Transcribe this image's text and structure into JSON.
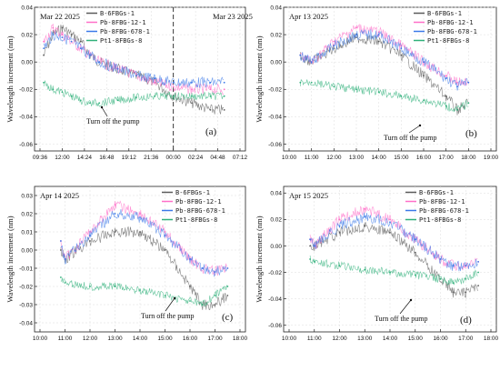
{
  "colors": {
    "B-6FBGs-1": "#5a5a5a",
    "Pb-8FBG-12-1": "#ff6fc8",
    "Pb-8FBG-678-1": "#3a78e8",
    "Pt1-8FBGs-8": "#2fb07a"
  },
  "legend_entries": [
    "B-6FBGs-1",
    "Pb-8FBG-12-1",
    "Pb-8FBG-678-1",
    "Pt1-8FBGs-8"
  ],
  "y_axis_label": "Wavelength  increment (nm)",
  "chart_data": [
    {
      "panel": "(a)",
      "type": "line",
      "title": "Mar 22 2025",
      "secondary_title": "Mar 23 2025",
      "ylabel": "Wavelength  increment (nm)",
      "xticks": [
        "09:36",
        "12:00",
        "14:24",
        "16:48",
        "19:12",
        "21:36",
        "00:00",
        "02:24",
        "04:48",
        "07:12"
      ],
      "yticks": [
        "0.04",
        "0.02",
        "0.00",
        "-0.02",
        "-0.04",
        "-0.06"
      ],
      "ylim": [
        -0.065,
        0.04
      ],
      "annotation": "Turn off the pump",
      "day_boundary_x": "00:00",
      "series": [
        {
          "name": "B-6FBGs-1",
          "x": [
            "10:00",
            "11:00",
            "12:00",
            "13:00",
            "14:00",
            "15:00",
            "16:00",
            "18:00",
            "20:00",
            "22:00",
            "00:00",
            "02:00",
            "04:00",
            "05:30"
          ],
          "values": [
            0.005,
            0.02,
            0.025,
            0.02,
            0.015,
            0.005,
            0.0,
            -0.005,
            -0.01,
            -0.015,
            -0.025,
            -0.03,
            -0.035,
            -0.035
          ]
        },
        {
          "name": "Pb-8FBG-12-1",
          "x": [
            "10:00",
            "11:00",
            "12:00",
            "13:00",
            "14:00",
            "15:00",
            "16:00",
            "18:00",
            "20:00",
            "22:00",
            "00:00",
            "02:00",
            "04:00",
            "05:30"
          ],
          "values": [
            0.015,
            0.025,
            0.02,
            0.015,
            0.01,
            0.005,
            0.0,
            -0.005,
            -0.01,
            -0.015,
            -0.018,
            -0.02,
            -0.02,
            -0.02
          ]
        },
        {
          "name": "Pb-8FBG-678-1",
          "x": [
            "10:00",
            "11:00",
            "12:00",
            "13:00",
            "14:00",
            "15:00",
            "16:00",
            "18:00",
            "20:00",
            "22:00",
            "00:00",
            "02:00",
            "04:00",
            "05:30"
          ],
          "values": [
            0.01,
            0.02,
            0.018,
            0.015,
            0.01,
            0.005,
            0.0,
            -0.005,
            -0.01,
            -0.012,
            -0.015,
            -0.015,
            -0.015,
            -0.015
          ]
        },
        {
          "name": "Pt1-8FBGs-8",
          "x": [
            "10:00",
            "11:00",
            "12:00",
            "13:00",
            "14:00",
            "15:00",
            "16:00",
            "18:00",
            "20:00",
            "22:00",
            "00:00",
            "02:00",
            "04:00",
            "05:30"
          ],
          "values": [
            -0.015,
            -0.02,
            -0.022,
            -0.025,
            -0.028,
            -0.03,
            -0.03,
            -0.028,
            -0.026,
            -0.025,
            -0.025,
            -0.025,
            -0.025,
            -0.025
          ]
        }
      ]
    },
    {
      "panel": "(b)",
      "type": "line",
      "title": "Apr 13 2025",
      "ylabel": "Wavelength  increment (nm)",
      "xticks": [
        "10:00",
        "11:00",
        "12:00",
        "13:00",
        "14:00",
        "15:00",
        "16:00",
        "17:00",
        "18:00",
        "19:00"
      ],
      "yticks": [
        "0.04",
        "0.02",
        "0.00",
        "-0.02",
        "-0.04",
        "-0.06"
      ],
      "ylim": [
        -0.065,
        0.04
      ],
      "annotation": "Turn off the pump",
      "series": [
        {
          "name": "B-6FBGs-1",
          "x": [
            "10:30",
            "11:00",
            "12:00",
            "13:00",
            "14:00",
            "15:00",
            "16:00",
            "17:00",
            "17:30",
            "18:00"
          ],
          "values": [
            0.005,
            0.0,
            0.01,
            0.018,
            0.015,
            0.005,
            -0.01,
            -0.025,
            -0.035,
            -0.03
          ]
        },
        {
          "name": "Pb-8FBG-12-1",
          "x": [
            "10:30",
            "11:00",
            "12:00",
            "13:00",
            "14:00",
            "15:00",
            "16:00",
            "17:00",
            "17:30",
            "18:00"
          ],
          "values": [
            0.005,
            0.0,
            0.015,
            0.025,
            0.022,
            0.012,
            0.0,
            -0.01,
            -0.015,
            -0.015
          ]
        },
        {
          "name": "Pb-8FBG-678-1",
          "x": [
            "10:30",
            "11:00",
            "12:00",
            "13:00",
            "14:00",
            "15:00",
            "16:00",
            "17:00",
            "17:30",
            "18:00"
          ],
          "values": [
            0.005,
            0.0,
            0.012,
            0.02,
            0.02,
            0.01,
            0.0,
            -0.012,
            -0.018,
            -0.015
          ]
        },
        {
          "name": "Pt1-8FBGs-8",
          "x": [
            "10:30",
            "11:00",
            "12:00",
            "13:00",
            "14:00",
            "15:00",
            "16:00",
            "17:00",
            "17:30",
            "18:00"
          ],
          "values": [
            -0.015,
            -0.015,
            -0.018,
            -0.02,
            -0.022,
            -0.025,
            -0.028,
            -0.032,
            -0.035,
            -0.03
          ]
        }
      ]
    },
    {
      "panel": "(c)",
      "type": "line",
      "title": "Apr 14 2025",
      "ylabel": "Wavelength  increment (nm)",
      "xticks": [
        "10:00",
        "11:00",
        "12:00",
        "13:00",
        "14:00",
        "15:00",
        "16:00",
        "17:00",
        "18:00"
      ],
      "yticks": [
        "0.03",
        "0.02",
        "0.01",
        "0.00",
        "-0.01",
        "-0.02",
        "-0.03",
        "-0.04"
      ],
      "ylim": [
        -0.045,
        0.035
      ],
      "annotation": "Turn off the pump",
      "series": [
        {
          "name": "B-6FBGs-1",
          "x": [
            "10:50",
            "11:00",
            "12:00",
            "13:00",
            "14:00",
            "15:00",
            "16:00",
            "16:30",
            "17:00",
            "17:30"
          ],
          "values": [
            0.0,
            -0.005,
            0.005,
            0.01,
            0.01,
            0.0,
            -0.02,
            -0.03,
            -0.03,
            -0.025
          ]
        },
        {
          "name": "Pb-8FBG-12-1",
          "x": [
            "10:50",
            "11:00",
            "12:00",
            "13:00",
            "14:00",
            "15:00",
            "16:00",
            "16:30",
            "17:00",
            "17:30"
          ],
          "values": [
            0.005,
            -0.005,
            0.01,
            0.025,
            0.02,
            0.01,
            -0.005,
            -0.01,
            -0.012,
            -0.01
          ]
        },
        {
          "name": "Pb-8FBG-678-1",
          "x": [
            "10:50",
            "11:00",
            "12:00",
            "13:00",
            "14:00",
            "15:00",
            "16:00",
            "16:30",
            "17:00",
            "17:30"
          ],
          "values": [
            0.005,
            -0.005,
            0.008,
            0.02,
            0.018,
            0.008,
            -0.005,
            -0.01,
            -0.012,
            -0.01
          ]
        },
        {
          "name": "Pt1-8FBGs-8",
          "x": [
            "10:50",
            "11:00",
            "12:00",
            "13:00",
            "14:00",
            "15:00",
            "16:00",
            "16:30",
            "17:00",
            "17:30"
          ],
          "values": [
            -0.015,
            -0.018,
            -0.02,
            -0.02,
            -0.022,
            -0.025,
            -0.028,
            -0.03,
            -0.025,
            -0.02
          ]
        }
      ]
    },
    {
      "panel": "(d)",
      "type": "line",
      "title": "Apr 15 2025",
      "ylabel": "Wavelength  increment (nm)",
      "xticks": [
        "10:00",
        "11:00",
        "12:00",
        "13:00",
        "14:00",
        "15:00",
        "16:00",
        "17:00",
        "18:00"
      ],
      "yticks": [
        "0.04",
        "0.02",
        "0.00",
        "-0.02",
        "-0.04",
        "-0.06"
      ],
      "ylim": [
        -0.065,
        0.045
      ],
      "annotation": "Turn off the pump",
      "series": [
        {
          "name": "B-6FBGs-1",
          "x": [
            "10:50",
            "11:00",
            "12:00",
            "13:00",
            "14:00",
            "15:00",
            "16:00",
            "16:30",
            "17:00",
            "17:30"
          ],
          "values": [
            0.0,
            0.0,
            0.01,
            0.015,
            0.01,
            -0.005,
            -0.025,
            -0.035,
            -0.035,
            -0.03
          ]
        },
        {
          "name": "Pb-8FBG-12-1",
          "x": [
            "10:50",
            "11:00",
            "12:00",
            "13:00",
            "14:00",
            "15:00",
            "16:00",
            "16:30",
            "17:00",
            "17:30"
          ],
          "values": [
            0.005,
            0.0,
            0.02,
            0.028,
            0.02,
            0.005,
            -0.01,
            -0.015,
            -0.015,
            -0.012
          ]
        },
        {
          "name": "Pb-8FBG-678-1",
          "x": [
            "10:50",
            "11:00",
            "12:00",
            "13:00",
            "14:00",
            "15:00",
            "16:00",
            "16:30",
            "17:00",
            "17:30"
          ],
          "values": [
            0.005,
            0.0,
            0.015,
            0.022,
            0.018,
            0.005,
            -0.01,
            -0.015,
            -0.015,
            -0.012
          ]
        },
        {
          "name": "Pt1-8FBGs-8",
          "x": [
            "10:50",
            "11:00",
            "12:00",
            "13:00",
            "14:00",
            "15:00",
            "16:00",
            "16:30",
            "17:00",
            "17:30"
          ],
          "values": [
            -0.01,
            -0.012,
            -0.015,
            -0.018,
            -0.02,
            -0.022,
            -0.025,
            -0.028,
            -0.025,
            -0.02
          ]
        }
      ]
    }
  ]
}
